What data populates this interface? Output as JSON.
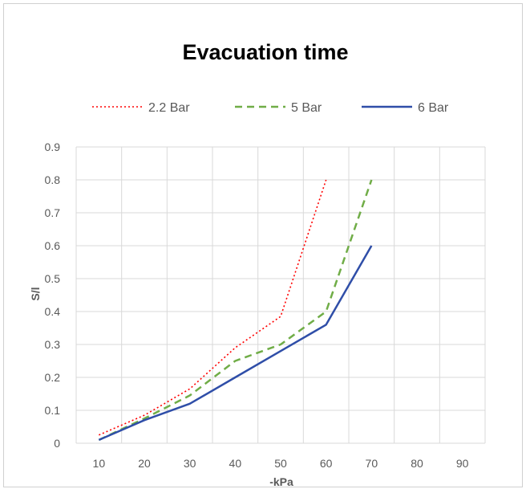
{
  "chart_data": {
    "type": "line",
    "title": "Evacuation time",
    "xlabel": "-kPa",
    "ylabel": "S/l",
    "x_ticks": [
      10,
      20,
      30,
      40,
      50,
      60,
      70,
      80,
      90
    ],
    "y_ticks": [
      "0",
      "0.1",
      "0.2",
      "0.3",
      "0.4",
      "0.5",
      "0.6",
      "0.7",
      "0.8",
      "0.9"
    ],
    "xlim": [
      5,
      95
    ],
    "ylim": [
      0,
      0.9
    ],
    "grid": true,
    "legend_position": "top",
    "series": [
      {
        "name": "2.2 Bar",
        "color": "#ff0000",
        "style": "dotted",
        "x": [
          10,
          20,
          30,
          40,
          50,
          60
        ],
        "y": [
          0.025,
          0.085,
          0.165,
          0.29,
          0.385,
          0.8
        ]
      },
      {
        "name": "5 Bar",
        "color": "#70ad47",
        "style": "dashed",
        "x": [
          10,
          20,
          30,
          40,
          50,
          60,
          70
        ],
        "y": [
          0.01,
          0.075,
          0.145,
          0.25,
          0.3,
          0.4,
          0.8
        ]
      },
      {
        "name": "6 Bar",
        "color": "#2f4ea8",
        "style": "solid",
        "x": [
          10,
          20,
          30,
          40,
          50,
          60,
          70
        ],
        "y": [
          0.01,
          0.07,
          0.12,
          0.2,
          0.28,
          0.36,
          0.6
        ]
      }
    ]
  }
}
